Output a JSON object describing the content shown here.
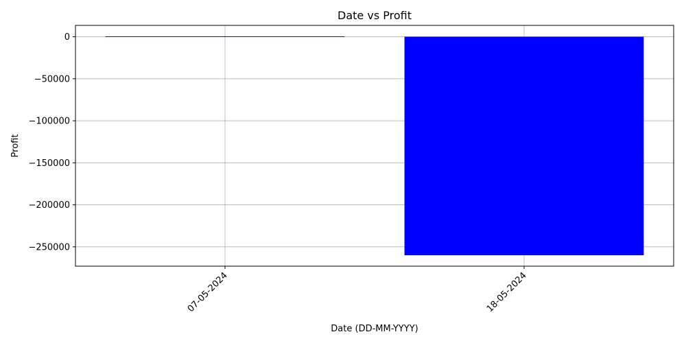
{
  "chart_data": {
    "type": "bar",
    "title": "Date vs Profit",
    "xlabel": "Date (DD-MM-YYYY)",
    "ylabel": "Profit",
    "categories": [
      "07-05-2024",
      "18-05-2024"
    ],
    "values": [
      500,
      -260000
    ],
    "ylim": [
      -273000,
      13500
    ],
    "yticks": [
      0,
      -50000,
      -100000,
      -150000,
      -200000,
      -250000
    ],
    "ytick_labels": [
      "0",
      "−50000",
      "−100000",
      "−150000",
      "−200000",
      "−250000"
    ],
    "grid": true,
    "bar_color": "#0000ff",
    "x_tick_rotation": 45
  }
}
